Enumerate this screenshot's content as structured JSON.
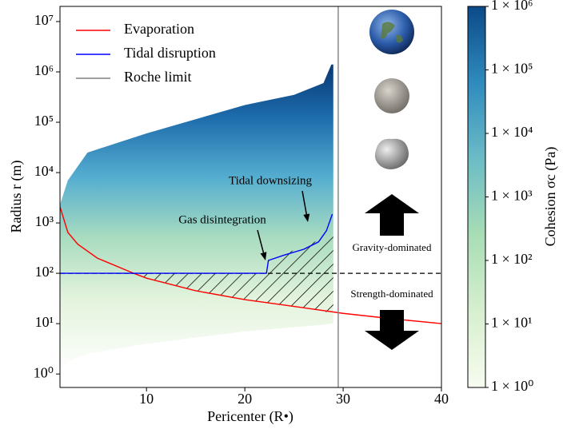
{
  "chart_data": {
    "type": "line",
    "xlabel": "Pericenter (R•)",
    "ylabel": "Radius r (m)",
    "xlim": [
      1.2,
      40
    ],
    "xticks": [
      10,
      20,
      30,
      40
    ],
    "yscale": "log",
    "ylim": [
      0.54,
      20000000
    ],
    "yticks": [
      {
        "value": 1,
        "label": "10⁰"
      },
      {
        "value": 10,
        "label": "10¹"
      },
      {
        "value": 100,
        "label": "10²"
      },
      {
        "value": 1000,
        "label": "10³"
      },
      {
        "value": 10000,
        "label": "10⁴"
      },
      {
        "value": 100000,
        "label": "10⁵"
      },
      {
        "value": 1000000,
        "label": "10⁶"
      },
      {
        "value": 10000000,
        "label": "10⁷"
      }
    ],
    "legend": "upper left",
    "series": [
      {
        "name": "Evaporation",
        "color": "#ff0000",
        "x": [
          1.2,
          2,
          3,
          5,
          8.7,
          10,
          15,
          20,
          25,
          30,
          35,
          40
        ],
        "values": [
          2100,
          650,
          380,
          200,
          100,
          80,
          45,
          30,
          22,
          16,
          12.5,
          10
        ]
      },
      {
        "name": "Tidal disruption",
        "color": "#0000ff",
        "x": [
          1.2,
          22.2,
          22.4,
          24,
          26,
          27.5,
          28.3,
          28.9
        ],
        "values": [
          100,
          100,
          180,
          230,
          300,
          420,
          700,
          1500
        ]
      },
      {
        "name": "Roche limit",
        "color": "#808080",
        "x": [
          29.5,
          29.5
        ],
        "values": [
          0.54,
          20000000
        ]
      }
    ],
    "boundary": {
      "value": 100,
      "color": "#000000"
    },
    "cohesion_region": {
      "x": [
        1.2,
        2,
        4,
        10,
        20,
        25,
        28,
        28.8,
        29
      ],
      "upper": [
        2300,
        7000,
        25000,
        60000,
        220000,
        350000,
        600000,
        1400000,
        1400000
      ],
      "lower": [
        1.1,
        1.8,
        2.5,
        4,
        7,
        8.5,
        9.5,
        10,
        10
      ]
    },
    "hatch": {
      "x": [
        8.7,
        22.2,
        22.4,
        29,
        29,
        25,
        20,
        15,
        10
      ],
      "values": [
        100,
        100,
        180,
        600,
        16,
        22,
        30,
        45,
        80
      ]
    },
    "annotations": [
      "Tidal downsizing",
      "Gas disintegration",
      "Gravity-dominated",
      "Strength-dominated"
    ],
    "colorbar": {
      "label": "Cohesion σc (Pa)",
      "lim": [
        1,
        1000000
      ],
      "ticks": [
        {
          "value": 1,
          "label": "1 × 10⁰"
        },
        {
          "value": 10,
          "label": "1 × 10¹"
        },
        {
          "value": 100,
          "label": "1 × 10²"
        },
        {
          "value": 1000,
          "label": "1 × 10³"
        },
        {
          "value": 10000,
          "label": "1 × 10⁴"
        },
        {
          "value": 100000,
          "label": "1 × 10⁵"
        },
        {
          "value": 1000000,
          "label": "1 × 10⁶"
        }
      ]
    }
  }
}
